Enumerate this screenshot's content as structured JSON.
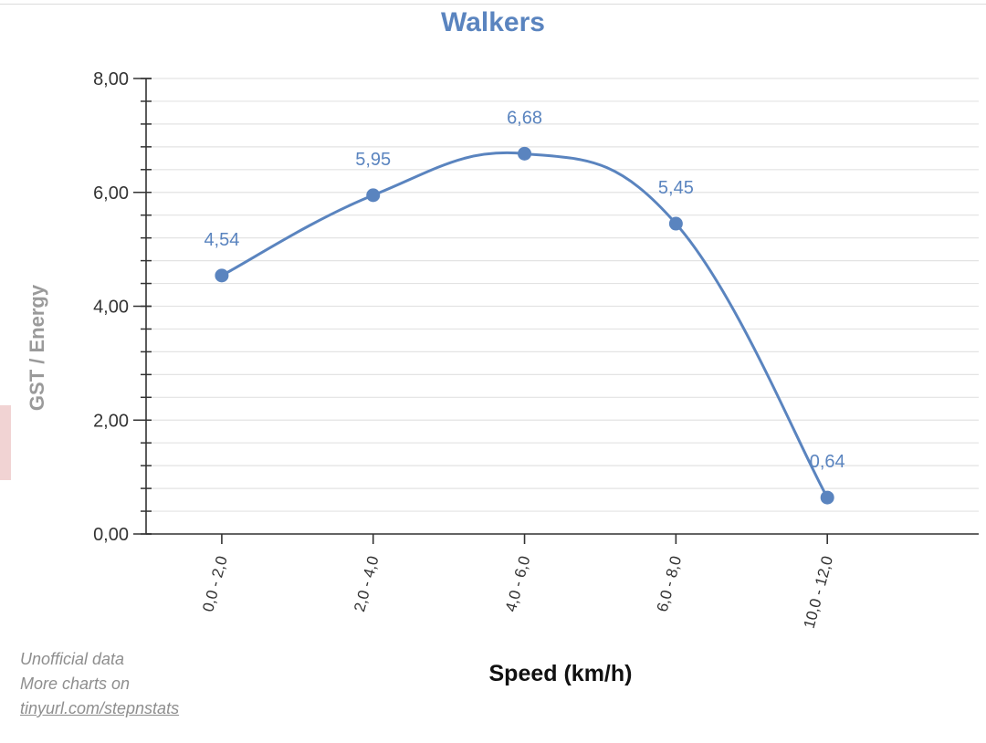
{
  "chart_data": {
    "type": "line",
    "title": "Walkers",
    "xlabel": "Speed (km/h)",
    "ylabel": "GST / Energy",
    "categories": [
      "0,0 - 2,0",
      "2,0 - 4,0",
      "4,0 - 6,0",
      "6,0 - 8,0",
      "10,0 - 12,0"
    ],
    "values": [
      4.54,
      5.95,
      6.68,
      5.45,
      0.64
    ],
    "value_labels": [
      "4,54",
      "5,95",
      "6,68",
      "5,45",
      "0,64"
    ],
    "ylim": [
      0,
      8
    ],
    "yticks": [
      {
        "value": 0,
        "label": "0,00"
      },
      {
        "value": 2,
        "label": "2,00"
      },
      {
        "value": 4,
        "label": "4,00"
      },
      {
        "value": 6,
        "label": "6,00"
      },
      {
        "value": 8,
        "label": "8,00"
      }
    ],
    "minor_step": 0.4,
    "grid": true,
    "line_color": "#5a84bf",
    "title_color": "#5a84bf"
  },
  "footnote": {
    "line1": "Unofficial data",
    "line2": "More charts on",
    "link": "tinyurl.com/stepnstats"
  }
}
